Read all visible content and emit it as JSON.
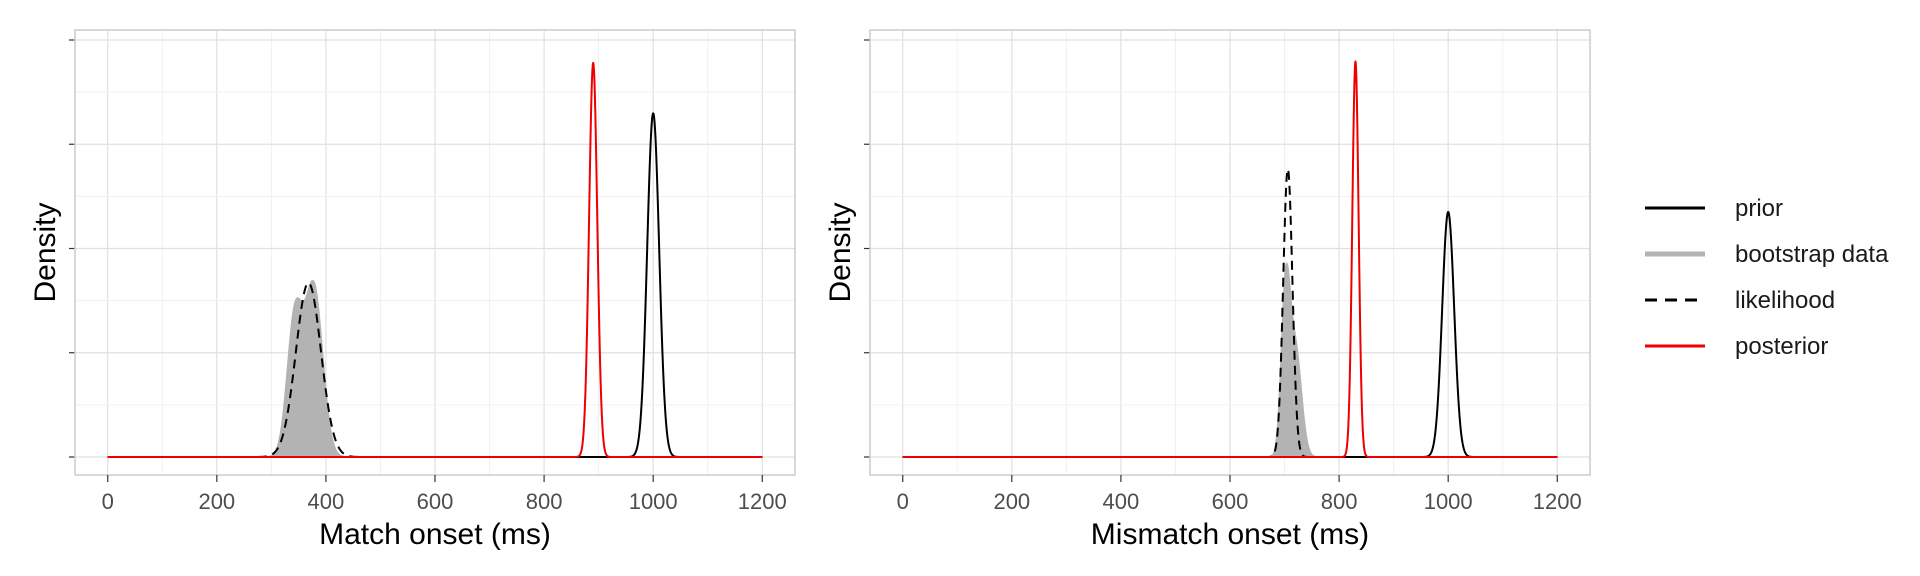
{
  "chart_data": [
    {
      "type": "line",
      "xlabel": "Match onset (ms)",
      "ylabel": "Density",
      "xlim": [
        -60,
        1260
      ],
      "xticks": [
        "0",
        "200",
        "400",
        "600",
        "800",
        "1000",
        "1200"
      ],
      "xtick_values": [
        0,
        200,
        400,
        600,
        800,
        1000,
        1200
      ],
      "y_tick_labels_shown": false,
      "grid": true,
      "series": [
        {
          "key": "prior",
          "dist": "normal",
          "mean": 1000,
          "sd": 11,
          "peak": 0.75
        },
        {
          "key": "bootstrap",
          "dist": "mixture",
          "peak": 0.385,
          "components": [
            {
              "mean": 343,
              "sd": 14,
              "weight": 0.45
            },
            {
              "mean": 378,
              "sd": 16,
              "weight": 0.55
            }
          ]
        },
        {
          "key": "likelihood",
          "dist": "normal",
          "mean": 368,
          "sd": 23,
          "peak": 0.38
        },
        {
          "key": "posterior",
          "dist": "normal",
          "mean": 890,
          "sd": 7.5,
          "peak": 0.86
        }
      ],
      "x_range": [
        0,
        1200
      ],
      "ymax": 0.91
    },
    {
      "type": "line",
      "xlabel": "Mismatch onset (ms)",
      "ylabel": "Density",
      "xlim": [
        -60,
        1260
      ],
      "xticks": [
        "0",
        "200",
        "400",
        "600",
        "800",
        "1000",
        "1200"
      ],
      "xtick_values": [
        0,
        200,
        400,
        600,
        800,
        1000,
        1200
      ],
      "y_tick_labels_shown": false,
      "grid": true,
      "series": [
        {
          "key": "prior",
          "dist": "normal",
          "mean": 1000,
          "sd": 11,
          "peak": 0.57
        },
        {
          "key": "bootstrap",
          "dist": "mixture",
          "peak": 0.45,
          "components": [
            {
              "mean": 702,
              "sd": 8,
              "weight": 0.6
            },
            {
              "mean": 720,
              "sd": 11,
              "weight": 0.4
            }
          ]
        },
        {
          "key": "likelihood",
          "dist": "normal",
          "mean": 706,
          "sd": 8.5,
          "peak": 0.67
        },
        {
          "key": "posterior",
          "dist": "normal",
          "mean": 830,
          "sd": 5.8,
          "peak": 0.92
        }
      ],
      "x_range": [
        0,
        1200
      ],
      "ymax": 0.97
    }
  ],
  "legend": {
    "position": "right",
    "items": [
      {
        "key": "prior",
        "label": "prior",
        "color": "#000000",
        "dash": "solid"
      },
      {
        "key": "bootstrap",
        "label": "bootstrap data",
        "color": "#b3b3b3",
        "dash": "solid"
      },
      {
        "key": "likelihood",
        "label": "likelihood",
        "color": "#000000",
        "dash": "dashed"
      },
      {
        "key": "posterior",
        "label": "posterior",
        "color": "#ee0000",
        "dash": "solid"
      }
    ]
  },
  "colors": {
    "panel_border": "#cccccc",
    "grid_major": "#e0e0e0",
    "grid_minor": "#f0f0f0",
    "bootstrap_fill": "#b3b3b3",
    "posterior": "#ee0000",
    "line": "#000000"
  }
}
